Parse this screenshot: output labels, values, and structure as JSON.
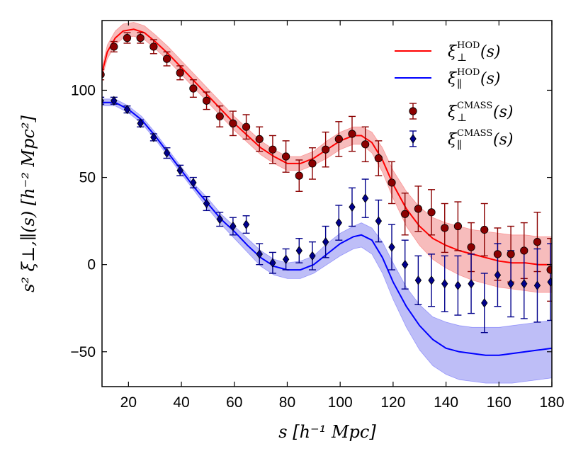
{
  "chart_data": {
    "type": "line",
    "xlabel": "s  [h⁻¹ Mpc]",
    "ylabel": "s² ξ⊥,∥(s)  [h⁻² Mpc²]",
    "xlim": [
      10,
      180
    ],
    "ylim": [
      -70,
      140
    ],
    "xticks": [
      20,
      40,
      60,
      80,
      100,
      120,
      140,
      160,
      180
    ],
    "yticks": [
      -50,
      0,
      50,
      100
    ],
    "tick_labels": {
      "x": [
        "20",
        "40",
        "60",
        "80",
        "100",
        "120",
        "140",
        "160",
        "180"
      ],
      "y": [
        "−50",
        "0",
        "50",
        "100"
      ]
    },
    "legend_position": "top-right",
    "colors": {
      "perp_line": "#ff0000",
      "perp_band": "#f4a5a5",
      "perp_points": "#8b0000",
      "par_line": "#0000ff",
      "par_band": "#a8a8f4",
      "par_points": "#00008b"
    },
    "series": [
      {
        "name": "ξ⊥HOD(s)",
        "legend_main": "ξ",
        "legend_sup": "HOD",
        "legend_sub": "⊥",
        "legend_arg": "(s)",
        "kind": "line_band",
        "color_key": "perp",
        "x": [
          10,
          12,
          15,
          18,
          22,
          26,
          30,
          35,
          40,
          45,
          50,
          55,
          60,
          65,
          70,
          75,
          80,
          85,
          90,
          95,
          100,
          105,
          108,
          112,
          116,
          120,
          125,
          130,
          135,
          140,
          145,
          150,
          155,
          160,
          165,
          170,
          175,
          180
        ],
        "y": [
          110,
          122,
          130,
          134,
          135,
          133,
          128,
          121,
          113,
          105,
          97,
          89,
          81,
          74,
          67,
          62,
          58,
          58,
          61,
          66,
          71,
          74,
          74,
          70,
          60,
          46,
          32,
          22,
          15,
          11,
          8,
          6,
          4,
          2,
          1,
          1,
          0,
          0
        ],
        "lower": [
          107,
          118,
          126,
          130,
          131,
          129,
          124,
          117,
          109,
          101,
          93,
          85,
          77,
          70,
          63,
          58,
          54,
          54,
          57,
          61,
          66,
          69,
          69,
          64,
          53,
          38,
          22,
          11,
          3,
          -2,
          -6,
          -9,
          -11,
          -13,
          -14,
          -15,
          -16,
          -16
        ],
        "upper": [
          113,
          126,
          134,
          138,
          139,
          137,
          132,
          125,
          117,
          109,
          101,
          93,
          85,
          78,
          71,
          66,
          62,
          62,
          65,
          71,
          76,
          79,
          79,
          76,
          67,
          54,
          42,
          33,
          27,
          24,
          22,
          20,
          19,
          18,
          17,
          17,
          16,
          16
        ]
      },
      {
        "name": "ξ∥HOD(s)",
        "legend_main": "ξ",
        "legend_sup": "HOD",
        "legend_sub": "∥",
        "legend_arg": "(s)",
        "kind": "line_band",
        "color_key": "par",
        "x": [
          10,
          15,
          20,
          25,
          30,
          35,
          40,
          45,
          50,
          55,
          60,
          65,
          70,
          75,
          80,
          85,
          90,
          95,
          100,
          105,
          108,
          112,
          116,
          120,
          125,
          130,
          135,
          140,
          145,
          150,
          155,
          160,
          165,
          170,
          175,
          180
        ],
        "y": [
          93,
          93,
          89,
          83,
          74,
          64,
          54,
          44,
          35,
          26,
          19,
          11,
          4,
          -1,
          -3,
          -3,
          0,
          6,
          12,
          16,
          17,
          14,
          4,
          -10,
          -24,
          -35,
          -43,
          -48,
          -50,
          -51,
          -52,
          -52,
          -51,
          -50,
          -49,
          -48
        ],
        "lower": [
          91,
          91,
          87,
          81,
          72,
          62,
          52,
          42,
          32,
          23,
          15,
          7,
          -1,
          -6,
          -8,
          -8,
          -5,
          0,
          5,
          9,
          10,
          6,
          -5,
          -20,
          -36,
          -49,
          -58,
          -63,
          -66,
          -67,
          -68,
          -68,
          -68,
          -67,
          -66,
          -65
        ],
        "upper": [
          95,
          95,
          91,
          85,
          76,
          66,
          56,
          46,
          38,
          29,
          22,
          15,
          8,
          3,
          1,
          2,
          5,
          12,
          18,
          22,
          24,
          21,
          13,
          1,
          -13,
          -23,
          -30,
          -33,
          -35,
          -36,
          -36,
          -36,
          -35,
          -34,
          -33,
          -32
        ]
      },
      {
        "name": "ξ⊥CMASS(s)",
        "legend_main": "ξ",
        "legend_sup": "CMASS",
        "legend_sub": "⊥",
        "legend_arg": "(s)",
        "kind": "points",
        "marker": "circle",
        "color_key": "perp",
        "x": [
          9.5,
          14.5,
          19.5,
          24.5,
          29.5,
          34.5,
          39.5,
          44.5,
          49.5,
          54.5,
          59.5,
          64.5,
          69.5,
          74.5,
          79.5,
          84.5,
          89.5,
          94.5,
          99.5,
          104.5,
          109.5,
          114.5,
          119.5,
          124.5,
          129.5,
          134.5,
          139.5,
          144.5,
          149.5,
          154.5,
          159.5,
          164.5,
          169.5,
          174.5,
          179.5
        ],
        "y": [
          109,
          125,
          130,
          130,
          125,
          118,
          110,
          101,
          94,
          85,
          81,
          79,
          72,
          66,
          62,
          51,
          58,
          66,
          72,
          75,
          69,
          61,
          47,
          29,
          32,
          30,
          21,
          22,
          10,
          20,
          6,
          6,
          8,
          13,
          -3
        ],
        "err": [
          3,
          3,
          3,
          3,
          4,
          4,
          4,
          5,
          5,
          6,
          7,
          7,
          7,
          8,
          9,
          9,
          9,
          10,
          10,
          10,
          10,
          10,
          12,
          12,
          13,
          13,
          14,
          14,
          14,
          15,
          15,
          16,
          16,
          17,
          18
        ]
      },
      {
        "name": "ξ∥CMASS(s)",
        "legend_main": "ξ",
        "legend_sup": "CMASS",
        "legend_sub": "∥",
        "legend_arg": "(s)",
        "kind": "points",
        "marker": "diamond",
        "color_key": "par",
        "x": [
          9.5,
          14.5,
          19.5,
          24.5,
          29.5,
          34.5,
          39.5,
          44.5,
          49.5,
          54.5,
          59.5,
          64.5,
          69.5,
          74.5,
          79.5,
          84.5,
          89.5,
          94.5,
          99.5,
          104.5,
          109.5,
          114.5,
          119.5,
          124.5,
          129.5,
          134.5,
          139.5,
          144.5,
          149.5,
          154.5,
          159.5,
          164.5,
          169.5,
          174.5,
          179.5
        ],
        "y": [
          94,
          94,
          89,
          81,
          73,
          64,
          54,
          47,
          35,
          26,
          22,
          23,
          6,
          1,
          3,
          8,
          5,
          13,
          24,
          33,
          38,
          25,
          10,
          0,
          -9,
          -9,
          -11,
          -12,
          -11,
          -22,
          -6,
          -11,
          -11,
          -12,
          -10
        ],
        "err": [
          2,
          2,
          2,
          2,
          2,
          3,
          3,
          3,
          4,
          4,
          5,
          5,
          6,
          6,
          6,
          7,
          8,
          9,
          10,
          11,
          11,
          12,
          13,
          14,
          14,
          15,
          16,
          17,
          17,
          17,
          18,
          19,
          20,
          21,
          22
        ]
      }
    ]
  }
}
